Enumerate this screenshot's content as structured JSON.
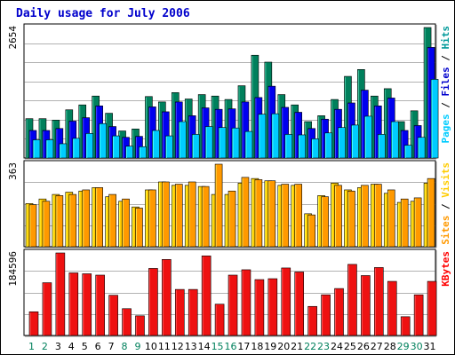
{
  "chart_data": [
    {
      "type": "bar",
      "title": "Daily usage for July 2006",
      "max_label": "2654",
      "ylim": [
        0,
        2654
      ],
      "grid": true,
      "categories": [
        "1",
        "2",
        "3",
        "4",
        "5",
        "6",
        "7",
        "8",
        "9",
        "10",
        "11",
        "12",
        "13",
        "14",
        "15",
        "16",
        "17",
        "18",
        "19",
        "20",
        "21",
        "22",
        "23",
        "24",
        "25",
        "26",
        "27",
        "28",
        "29",
        "30",
        "31"
      ],
      "weekend_days": [
        "1",
        "2",
        "8",
        "9",
        "15",
        "16",
        "22",
        "23",
        "29",
        "30"
      ],
      "legend": [
        {
          "text": "Hits",
          "color": "#009999"
        },
        {
          "text": "/",
          "color": "#000000"
        },
        {
          "text": "Files",
          "color": "#0000cc"
        },
        {
          "text": "/",
          "color": "#000000"
        },
        {
          "text": "Pages",
          "color": "#00ccff"
        }
      ],
      "series": [
        {
          "name": "Hits",
          "color": "#00805c",
          "values": [
            800,
            800,
            770,
            980,
            1080,
            1260,
            910,
            550,
            590,
            1250,
            1140,
            1330,
            1200,
            1290,
            1260,
            1190,
            1470,
            2090,
            1950,
            1290,
            1080,
            740,
            860,
            1190,
            1660,
            1800,
            1260,
            1410,
            740,
            960,
            2654
          ]
        },
        {
          "name": "Files",
          "color": "#0000ee",
          "values": [
            560,
            560,
            600,
            750,
            820,
            1060,
            640,
            420,
            440,
            1040,
            940,
            1140,
            860,
            1020,
            990,
            1000,
            1140,
            1230,
            1460,
            1030,
            930,
            600,
            790,
            990,
            1120,
            1380,
            1060,
            1220,
            560,
            660,
            2250
          ]
        },
        {
          "name": "Pages",
          "color": "#00ccff",
          "values": [
            370,
            370,
            290,
            400,
            500,
            700,
            450,
            240,
            230,
            560,
            450,
            740,
            480,
            640,
            620,
            610,
            540,
            890,
            900,
            480,
            470,
            390,
            510,
            620,
            670,
            850,
            480,
            740,
            260,
            420,
            1600
          ]
        }
      ]
    },
    {
      "type": "bar",
      "max_label": "363",
      "ylim": [
        0,
        363
      ],
      "grid": true,
      "categories": [
        "1",
        "2",
        "3",
        "4",
        "5",
        "6",
        "7",
        "8",
        "9",
        "10",
        "11",
        "12",
        "13",
        "14",
        "15",
        "16",
        "17",
        "18",
        "19",
        "20",
        "21",
        "22",
        "23",
        "24",
        "25",
        "26",
        "27",
        "28",
        "29",
        "30",
        "31"
      ],
      "legend": [
        {
          "text": "Visits",
          "color": "#ffcc00"
        },
        {
          "text": "/",
          "color": "#000000"
        },
        {
          "text": "Sites",
          "color": "#ff9900"
        }
      ],
      "series": [
        {
          "name": "Visits",
          "color": "#ffcc00",
          "values": [
            190,
            210,
            230,
            240,
            245,
            260,
            220,
            200,
            175,
            250,
            285,
            270,
            270,
            265,
            230,
            230,
            280,
            300,
            290,
            270,
            270,
            145,
            225,
            280,
            250,
            260,
            275,
            235,
            195,
            200,
            280
          ]
        },
        {
          "name": "Sites",
          "color": "#ff9900",
          "values": [
            185,
            200,
            225,
            230,
            250,
            260,
            230,
            210,
            170,
            250,
            285,
            275,
            285,
            265,
            363,
            245,
            305,
            295,
            290,
            275,
            275,
            140,
            220,
            270,
            245,
            270,
            275,
            250,
            210,
            215,
            300
          ]
        }
      ]
    },
    {
      "type": "bar",
      "max_label": "184596",
      "ylim": [
        0,
        184596
      ],
      "grid": true,
      "categories": [
        "1",
        "2",
        "3",
        "4",
        "5",
        "6",
        "7",
        "8",
        "9",
        "10",
        "11",
        "12",
        "13",
        "14",
        "15",
        "16",
        "17",
        "18",
        "19",
        "20",
        "21",
        "22",
        "23",
        "24",
        "25",
        "26",
        "27",
        "28",
        "29",
        "30",
        "31"
      ],
      "legend": [
        {
          "text": "KBytes",
          "color": "#ff0000"
        }
      ],
      "series": [
        {
          "name": "KBytes",
          "color": "#ee1111",
          "values": [
            53000,
            118000,
            184596,
            140000,
            138000,
            135000,
            90000,
            60000,
            44000,
            150000,
            170000,
            103000,
            103000,
            178000,
            70000,
            135000,
            147000,
            125000,
            127000,
            151000,
            142000,
            65000,
            91000,
            105000,
            159000,
            134000,
            152000,
            121000,
            42000,
            91000,
            121000
          ]
        }
      ]
    }
  ]
}
